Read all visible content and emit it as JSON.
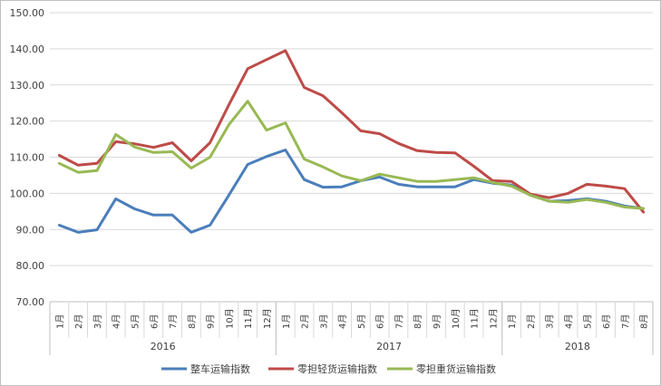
{
  "chart_data": {
    "type": "line",
    "title": "",
    "xlabel": "",
    "ylabel": "",
    "ylim": [
      70,
      150
    ],
    "yticks": [
      "70.00",
      "80.00",
      "90.00",
      "100.00",
      "110.00",
      "120.00",
      "130.00",
      "140.00",
      "150.00"
    ],
    "grid": "horizontal",
    "legend_position": "bottom",
    "years": [
      {
        "label": "2016",
        "months": [
          "1月",
          "2月",
          "3月",
          "4月",
          "5月",
          "6月",
          "7月",
          "8月",
          "9月",
          "10月",
          "11月",
          "12月"
        ]
      },
      {
        "label": "2017",
        "months": [
          "1月",
          "2月",
          "3月",
          "4月",
          "5月",
          "6月",
          "7月",
          "8月",
          "9月",
          "10月",
          "11月",
          "12月"
        ]
      },
      {
        "label": "2018",
        "months": [
          "1月",
          "2月",
          "3月",
          "4月",
          "5月",
          "6月",
          "7月",
          "8月"
        ]
      }
    ],
    "series": [
      {
        "name": "整车运输指数",
        "color": "#4a7ebb",
        "values": [
          91.2,
          89.2,
          89.9,
          98.5,
          95.7,
          94.0,
          94.0,
          89.2,
          91.2,
          99.5,
          108.0,
          110.2,
          112.0,
          103.8,
          101.7,
          101.8,
          103.5,
          104.5,
          102.5,
          101.8,
          101.8,
          101.8,
          103.8,
          102.8,
          102.3,
          99.5,
          97.8,
          98.0,
          98.5,
          97.8,
          96.5,
          95.8
        ]
      },
      {
        "name": "零担轻货运输指数",
        "color": "#be4b48",
        "values": [
          110.5,
          107.8,
          108.3,
          114.3,
          113.7,
          112.7,
          114.0,
          109.0,
          114.0,
          124.5,
          134.5,
          137.0,
          139.5,
          129.3,
          127.0,
          122.3,
          117.3,
          116.5,
          113.8,
          111.8,
          111.3,
          111.2,
          107.5,
          103.5,
          103.3,
          99.8,
          98.8,
          100.0,
          102.5,
          102.0,
          101.3,
          94.8
        ]
      },
      {
        "name": "零担重货运输指数",
        "color": "#98b954",
        "values": [
          108.3,
          105.8,
          106.3,
          116.3,
          112.8,
          111.3,
          111.5,
          107.0,
          110.0,
          119.0,
          125.5,
          117.5,
          119.5,
          109.5,
          107.3,
          104.8,
          103.5,
          105.3,
          104.3,
          103.3,
          103.3,
          103.8,
          104.3,
          103.0,
          102.0,
          99.5,
          97.8,
          97.5,
          98.3,
          97.5,
          96.2,
          95.8
        ]
      }
    ]
  }
}
